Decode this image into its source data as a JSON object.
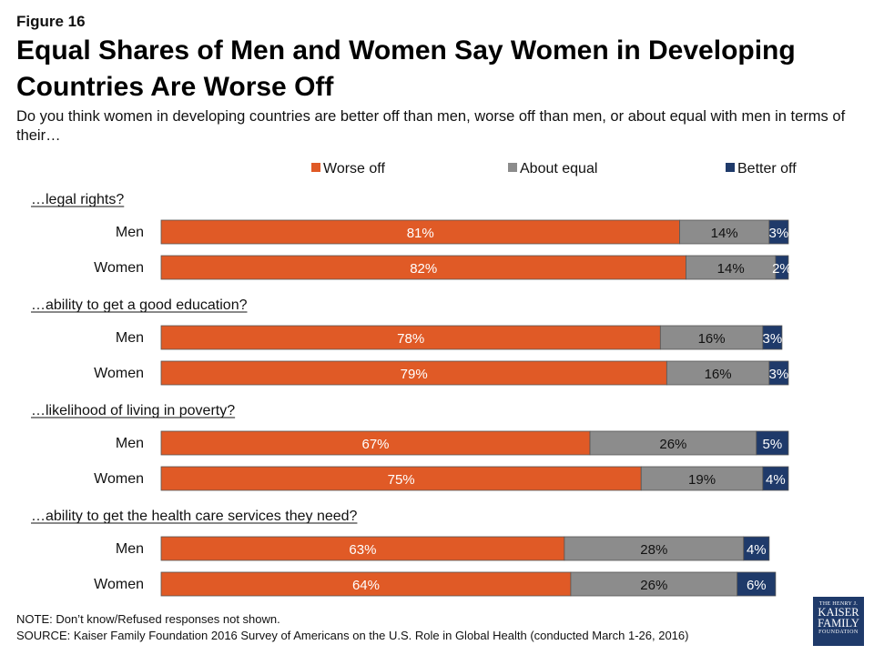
{
  "figure_label": "Figure 16",
  "chart_data": {
    "type": "bar",
    "orientation": "horizontal",
    "stacked": true,
    "title": "Equal Shares of Men and Women Say Women in Developing Countries Are Worse Off",
    "subtitle": "Do you think women in developing countries are better off than men, worse off than men, or about equal with men in terms of their…",
    "legend_position": "top-right",
    "series": [
      {
        "name": "Worse off",
        "color": "#e05a26"
      },
      {
        "name": "About equal",
        "color": "#8c8c8c"
      },
      {
        "name": "Better off",
        "color": "#1f3a6a"
      }
    ],
    "groups": [
      {
        "label": "…legal rights?",
        "rows": [
          {
            "label": "Men",
            "values": [
              81,
              14,
              3
            ]
          },
          {
            "label": "Women",
            "values": [
              82,
              14,
              2
            ]
          }
        ]
      },
      {
        "label": "…ability to get a good education?",
        "rows": [
          {
            "label": "Men",
            "values": [
              78,
              16,
              3
            ]
          },
          {
            "label": "Women",
            "values": [
              79,
              16,
              3
            ]
          }
        ]
      },
      {
        "label": "…likelihood of living in poverty?",
        "rows": [
          {
            "label": "Men",
            "values": [
              67,
              26,
              5
            ]
          },
          {
            "label": "Women",
            "values": [
              75,
              19,
              4
            ]
          }
        ]
      },
      {
        "label": "…ability to get the health care services they need?",
        "rows": [
          {
            "label": "Men",
            "values": [
              63,
              28,
              4
            ]
          },
          {
            "label": "Women",
            "values": [
              64,
              26,
              6
            ]
          }
        ]
      }
    ],
    "value_suffix": "%"
  },
  "footer": {
    "note": "NOTE: Don’t know/Refused responses not shown.",
    "source": "SOURCE: Kaiser Family Foundation 2016 Survey of Americans on the U.S. Role in Global Health (conducted March 1-26, 2016)"
  },
  "logo": {
    "line1": "THE HENRY J.",
    "line2": "KAISER",
    "line3": "FAMILY",
    "line4": "FOUNDATION"
  }
}
